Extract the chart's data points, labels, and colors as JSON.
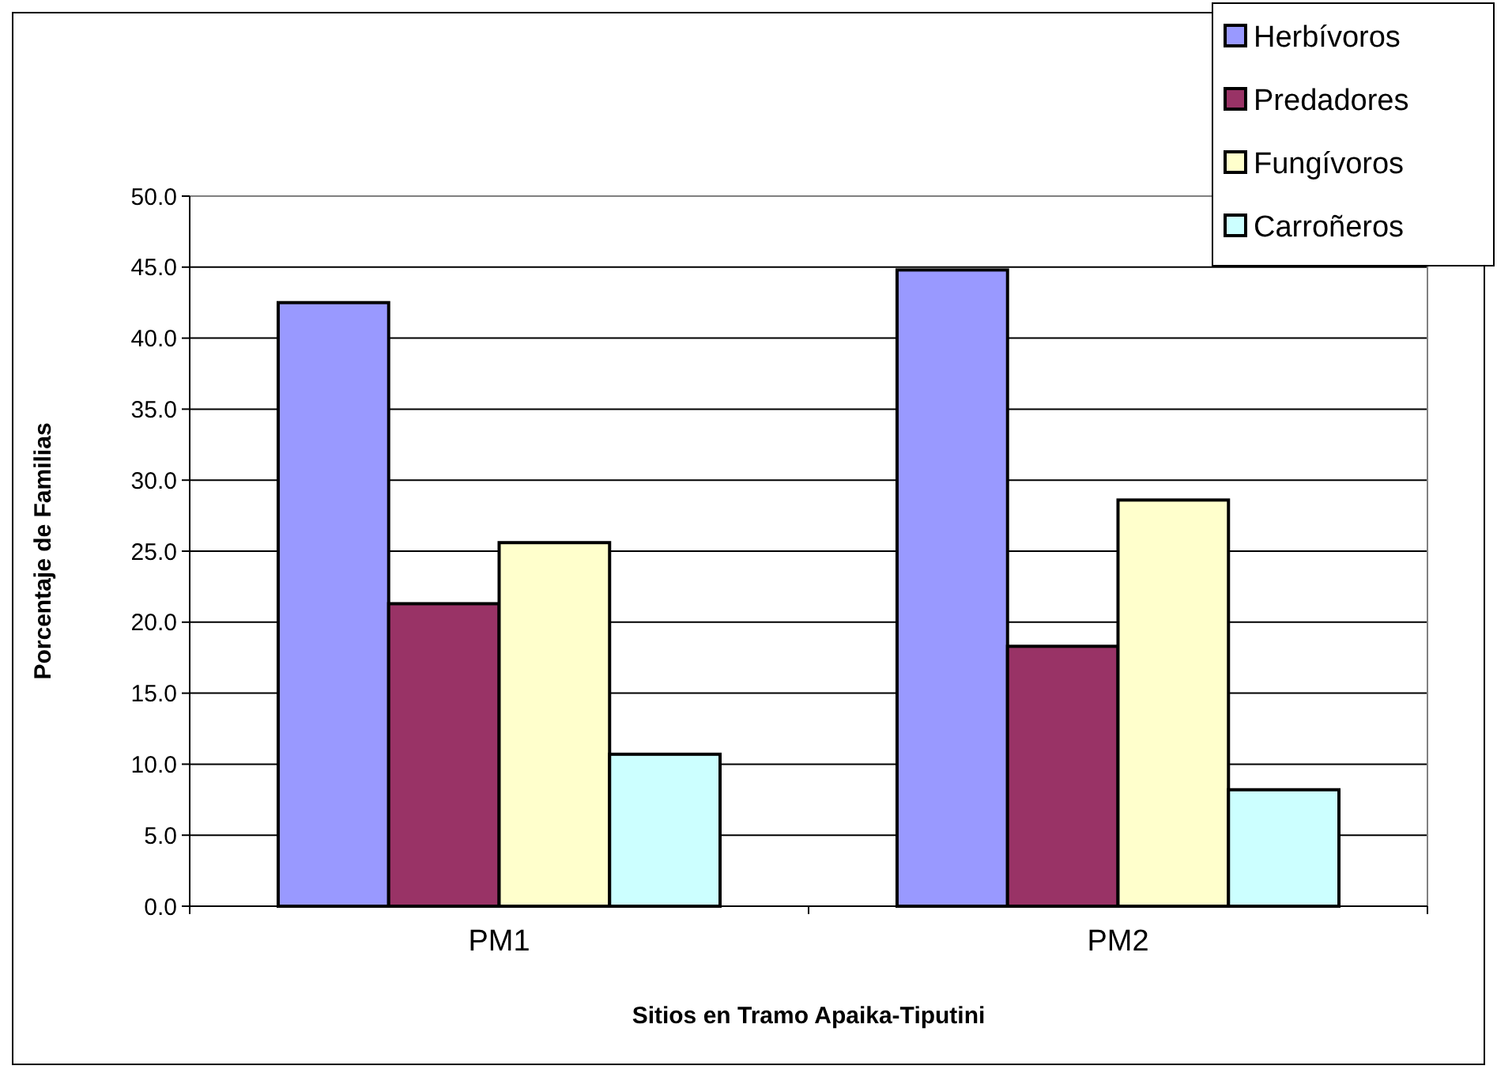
{
  "chart_data": {
    "type": "bar",
    "xlabel": "Sitios en Tramo Apaika-Tiputini",
    "ylabel": "Porcentaje de Familias",
    "categories": [
      "PM1",
      "PM2"
    ],
    "series": [
      {
        "name": "Herbívoros",
        "color": "#9999ff",
        "values": [
          42.5,
          44.8
        ]
      },
      {
        "name": "Predadores",
        "color": "#993366",
        "values": [
          21.3,
          18.3
        ]
      },
      {
        "name": "Fungívoros",
        "color": "#ffffcc",
        "values": [
          25.6,
          28.6
        ]
      },
      {
        "name": "Carroñeros",
        "color": "#ccffff",
        "values": [
          10.7,
          8.2
        ]
      }
    ],
    "ylim": [
      0,
      50
    ],
    "yticks": [
      {
        "value": 0,
        "label": "0.0"
      },
      {
        "value": 5,
        "label": "5.0"
      },
      {
        "value": 10,
        "label": "10.0"
      },
      {
        "value": 15,
        "label": "15.0"
      },
      {
        "value": 20,
        "label": "20.0"
      },
      {
        "value": 25,
        "label": "25.0"
      },
      {
        "value": 30,
        "label": "30.0"
      },
      {
        "value": 35,
        "label": "35.0"
      },
      {
        "value": 40,
        "label": "40.0"
      },
      {
        "value": 45,
        "label": "45.0"
      },
      {
        "value": 50,
        "label": "50.0"
      }
    ],
    "grid": "y",
    "legend": "top right"
  }
}
